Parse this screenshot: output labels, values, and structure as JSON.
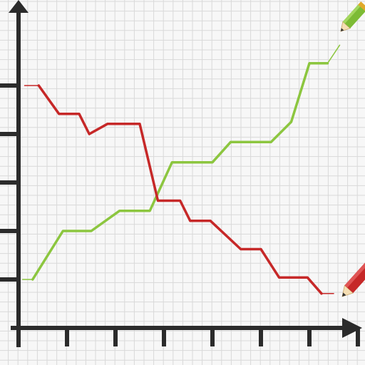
{
  "colors": {
    "background": "#f7f7f7",
    "grid": "#d9d9d9",
    "axis": "#2b2b2b",
    "green_series": "#8cc63f",
    "red_series": "#c62828",
    "pencil_green_body": "#7dbb35",
    "pencil_red_body": "#c62828",
    "pencil_wood": "#f5deb3",
    "pencil_band": "#e0a92a"
  },
  "icons": [
    "green-pencil-icon",
    "red-pencil-icon"
  ],
  "chart_data": {
    "type": "line",
    "title": "",
    "xlabel": "",
    "ylabel": "",
    "grid": true,
    "legend": "none",
    "xlim": [
      0,
      17.2
    ],
    "ylim": [
      0,
      12.8
    ],
    "x_ticks": [
      2.4,
      4.8,
      7.2,
      9.6,
      12.0,
      14.4,
      16.8
    ],
    "y_ticks": [
      2.4,
      4.8,
      7.2,
      9.6,
      12.0
    ],
    "series": [
      {
        "color": "#8cc63f",
        "x": [
          0.2,
          0.7,
          2.2,
          3.6,
          5.0,
          6.5,
          7.6,
          9.6,
          10.5,
          12.5,
          13.5,
          14.4,
          15.3,
          15.9
        ],
        "y": [
          2.4,
          2.4,
          4.8,
          4.8,
          5.8,
          5.8,
          8.2,
          8.2,
          9.2,
          9.2,
          10.2,
          13.1,
          13.1,
          14.0
        ]
      },
      {
        "color": "#c62828",
        "x": [
          0.3,
          1.0,
          2.0,
          3.0,
          3.5,
          4.4,
          6.0,
          6.9,
          8.0,
          8.5,
          9.5,
          11.0,
          12.0,
          12.9,
          14.3,
          15.0,
          15.6
        ],
        "y": [
          12.0,
          12.0,
          10.6,
          10.6,
          9.6,
          10.1,
          10.1,
          6.3,
          6.3,
          5.3,
          5.3,
          3.9,
          3.9,
          2.5,
          2.5,
          1.7,
          1.7
        ]
      }
    ]
  }
}
